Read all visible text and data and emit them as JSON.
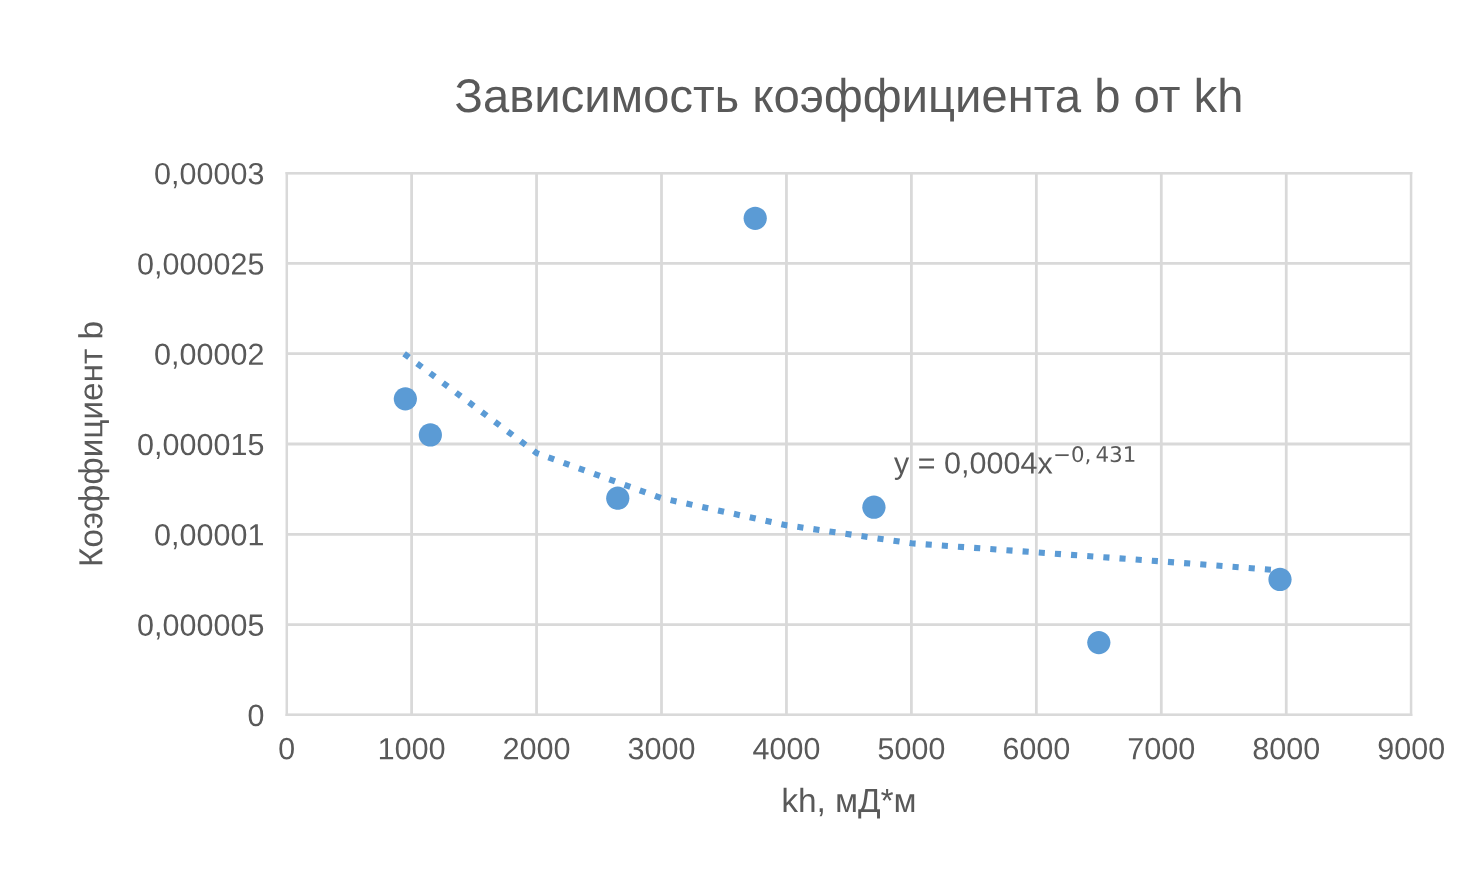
{
  "chart_data": {
    "type": "scatter",
    "title": "Зависимость коэффициента b от kh",
    "xlabel": "kh, мД*м",
    "ylabel": "Коэффициент b",
    "series": [
      {
        "color": "#5b9bd5",
        "marker": "circle",
        "x": [
          950,
          1150,
          2650,
          3750,
          4700,
          6500,
          7950
        ],
        "values": [
          1.75e-05,
          1.55e-05,
          1.2e-05,
          2.75e-05,
          1.15e-05,
          4e-06,
          7.5e-06
        ]
      },
      {
        "type": "line",
        "color": "#5b9bd5",
        "line_style": "dotted",
        "marker": "none",
        "x": [
          940,
          2000,
          3000,
          4000,
          5000,
          6000,
          7000,
          7950
        ],
        "values": [
          2e-05,
          1.45e-05,
          1.2e-05,
          1.05e-05,
          9.5e-06,
          9e-06,
          8.5e-06,
          8e-06
        ]
      }
    ],
    "xlim": [
      0,
      9000
    ],
    "xticks": [
      0,
      1000,
      2000,
      3000,
      4000,
      5000,
      6000,
      7000,
      8000,
      9000
    ],
    "ylim": [
      0,
      3e-05
    ],
    "yticks": [
      {
        "value": 0,
        "label": "0"
      },
      {
        "value": 5e-06,
        "label": "0,000005"
      },
      {
        "value": 1e-05,
        "label": "0,00001"
      },
      {
        "value": 1.5e-05,
        "label": "0,000015"
      },
      {
        "value": 2e-05,
        "label": "0,00002"
      },
      {
        "value": 2.5e-05,
        "label": "0,000025"
      },
      {
        "value": 3e-05,
        "label": "0,00003"
      }
    ],
    "grid": true,
    "legend": false,
    "annotations": [
      "y = 0,0004x$^{−0,431}$"
    ]
  }
}
